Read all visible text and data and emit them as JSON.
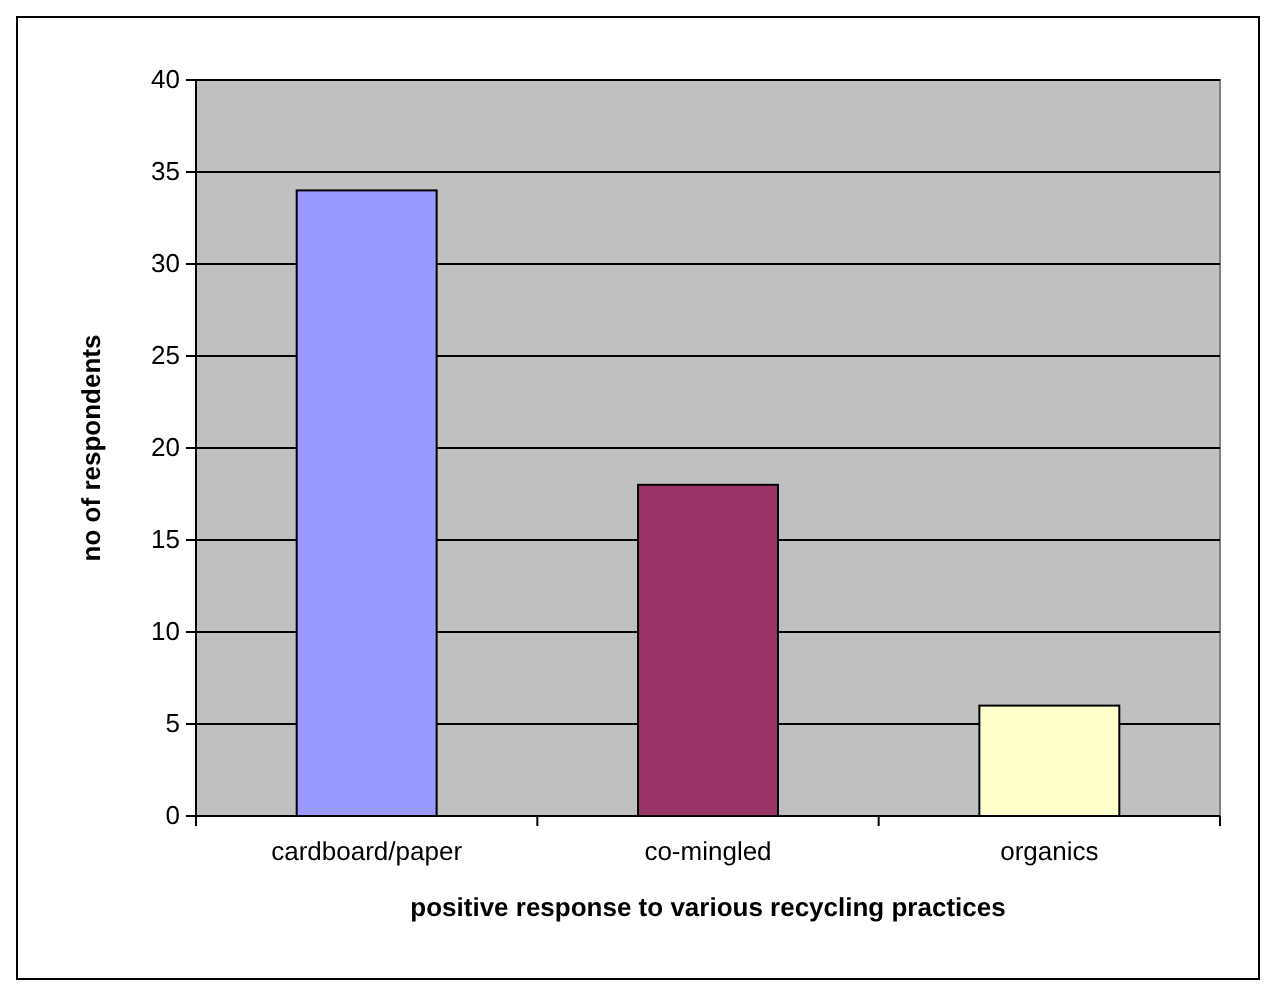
{
  "chart_data": {
    "type": "bar",
    "xlabel": "positive response to various recycling practices",
    "ylabel": "no of respondents",
    "categories": [
      "cardboard/paper",
      "co-mingled",
      "organics"
    ],
    "values": [
      34,
      18,
      6
    ],
    "colors": [
      "#9999ff",
      "#993366",
      "#ffffcc"
    ],
    "ylim": [
      0,
      40
    ],
    "yticks": [
      0,
      5,
      10,
      15,
      20,
      25,
      30,
      35,
      40
    ],
    "grid": "y"
  }
}
